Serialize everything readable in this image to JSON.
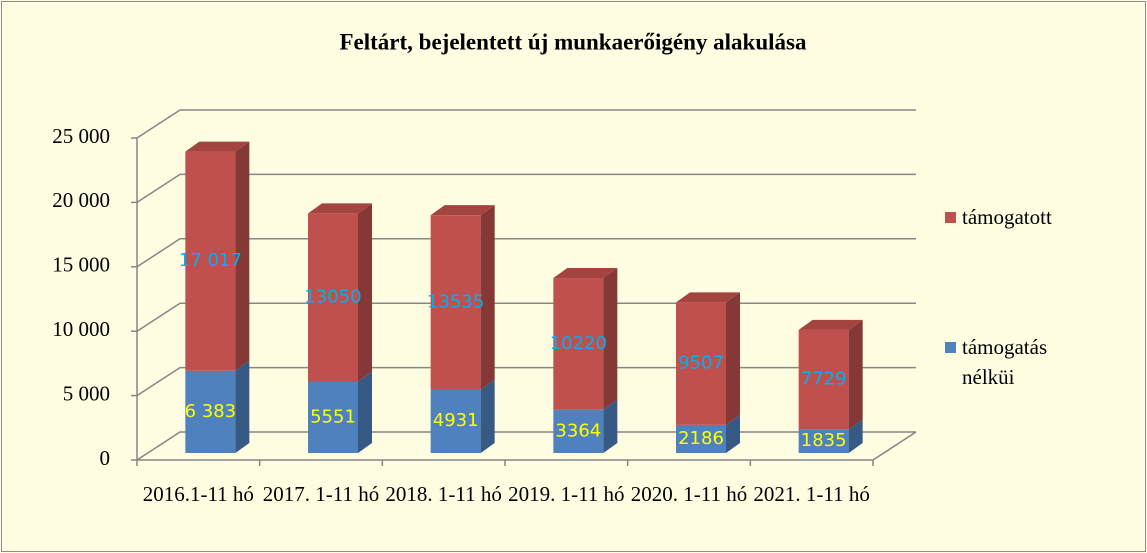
{
  "chart_data": {
    "type": "bar3d_stacked",
    "title": "Feltárt, bejelentett új munkaerőigény alakulása",
    "categories": [
      "2016.1-11 hó",
      "2017. 1-11 hó",
      "2018. 1-11 hó",
      "2019. 1-11 hó",
      "2020. 1-11 hó",
      "2021. 1-11 hó"
    ],
    "series": [
      {
        "name": "támogatás nélküi",
        "color": "#4f81bd",
        "label_color": "#ffff00",
        "values": [
          6383,
          5551,
          4931,
          3364,
          2186,
          1835
        ],
        "value_labels": [
          "6 383",
          "5551",
          "4931",
          "3364",
          "2186",
          "1835"
        ]
      },
      {
        "name": "támogatott",
        "color": "#c0504d",
        "label_color": "#00b0f0",
        "values": [
          17017,
          13050,
          13535,
          10220,
          9507,
          7729
        ],
        "value_labels": [
          "17 017",
          "13050",
          "13535",
          "10220",
          "9507",
          "7729"
        ]
      }
    ],
    "ylim": [
      0,
      25000
    ],
    "yticks": [
      0,
      {
        "value": 5000,
        "label": "5 000"
      },
      {
        "value": 10000,
        "label": "10 000"
      },
      {
        "value": 15000,
        "label": "15 000"
      },
      {
        "value": 20000,
        "label": "20 000"
      },
      {
        "value": 25000,
        "label": "25 000"
      }
    ],
    "grid": true,
    "legend": "right"
  }
}
